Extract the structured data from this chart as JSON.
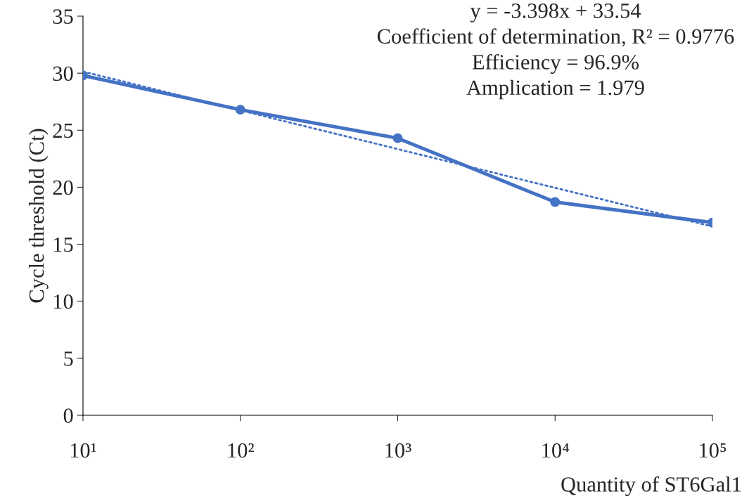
{
  "chart_data": {
    "type": "line",
    "xlabel": "Quantity of ST6Gal1",
    "ylabel": "Cycle threshold (Ct)",
    "annotations": [
      "y = -3.398x + 33.54",
      "Coefficient of determination, R² = 0.9776",
      "Efficiency = 96.9%",
      "Amplication = 1.979"
    ],
    "x": [
      10,
      100,
      1000,
      10000,
      100000
    ],
    "series": [
      {
        "color": "#4472c4",
        "values": [
          29.8,
          26.8,
          24.3,
          18.7,
          16.9
        ],
        "marker": "circle",
        "line_style": "solid"
      },
      {
        "color": "#4472c4",
        "x": [
          10,
          100000
        ],
        "values": [
          30.14,
          16.55
        ],
        "marker": "none",
        "line_style": "dotted"
      }
    ],
    "log": "x",
    "xlim": [
      10,
      100000
    ],
    "xticks": [
      {
        "value": 10,
        "label": "10¹"
      },
      {
        "value": 100,
        "label": "10²"
      },
      {
        "value": 1000,
        "label": "10³"
      },
      {
        "value": 10000,
        "label": "10⁴"
      },
      {
        "value": 100000,
        "label": "10⁵"
      }
    ],
    "ylim": [
      0,
      35
    ],
    "yticks": [
      0,
      5,
      10,
      15,
      20,
      25,
      30,
      35
    ],
    "grid": false,
    "legend": false
  }
}
